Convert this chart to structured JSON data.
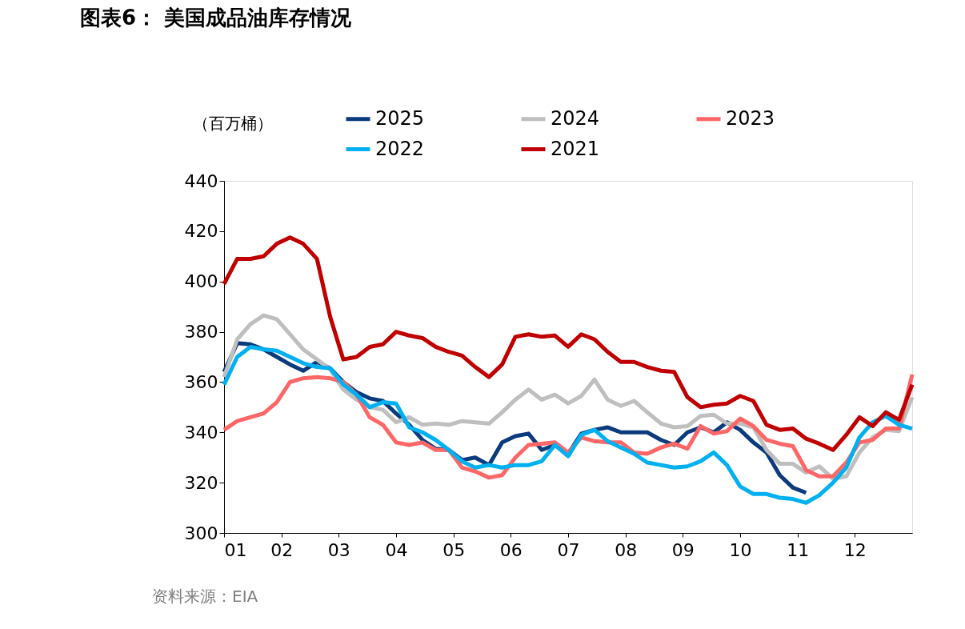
{
  "chart_data": {
    "type": "line",
    "title": "图表6：  美国成品油库存情况",
    "ylabel": "（百万桶）",
    "annotations": [
      "资料来源：EIA"
    ],
    "x": [
      1,
      1.23,
      1.46,
      1.69,
      1.92,
      2.15,
      2.38,
      2.62,
      2.85,
      3.08,
      3.31,
      3.54,
      3.77,
      4.0,
      4.23,
      4.46,
      4.69,
      4.92,
      5.15,
      5.38,
      5.62,
      5.85,
      6.08,
      6.31,
      6.54,
      6.77,
      7.0,
      7.23,
      7.46,
      7.69,
      7.92,
      8.15,
      8.38,
      8.62,
      8.85,
      9.08,
      9.31,
      9.54,
      9.77,
      10.0,
      10.23,
      10.46,
      10.69,
      10.92,
      11.15,
      11.38,
      11.62,
      11.85,
      12.08,
      12.31,
      12.54,
      12.77,
      13.0
    ],
    "xlim": [
      1,
      13
    ],
    "xticks": [
      {
        "value": 1,
        "label": "01"
      },
      {
        "value": 2,
        "label": "02"
      },
      {
        "value": 3,
        "label": "03"
      },
      {
        "value": 4,
        "label": "04"
      },
      {
        "value": 5,
        "label": "05"
      },
      {
        "value": 6,
        "label": "06"
      },
      {
        "value": 7,
        "label": "07"
      },
      {
        "value": 8,
        "label": "08"
      },
      {
        "value": 9,
        "label": "09"
      },
      {
        "value": 10,
        "label": "10"
      },
      {
        "value": 11,
        "label": "11"
      },
      {
        "value": 12,
        "label": "12"
      }
    ],
    "ylim": [
      300,
      440
    ],
    "yticks": [
      300,
      320,
      340,
      360,
      380,
      400,
      420,
      440
    ],
    "grid": false,
    "legend": "top",
    "marker": "none",
    "line_style": "solid",
    "series": [
      {
        "name": "2025",
        "color": "#0b3b7c",
        "values": [
          364,
          375.5,
          375,
          373,
          370,
          367,
          364.5,
          368,
          365.5,
          360,
          356,
          353.5,
          352.5,
          347.5,
          343,
          337,
          333.5,
          333,
          329,
          330,
          327,
          336,
          338.5,
          339.5,
          333,
          335,
          331.5,
          339.5,
          341,
          342,
          340,
          340,
          340,
          337,
          335,
          340,
          342,
          340,
          344,
          341,
          336,
          332,
          323,
          318,
          316,
          null,
          null,
          null,
          null,
          null,
          null,
          null,
          null
        ]
      },
      {
        "name": "2024",
        "color": "#bfbfbf",
        "values": [
          362,
          377,
          383,
          386.5,
          385,
          379,
          373,
          369,
          365,
          357,
          353,
          350,
          349,
          344,
          346,
          343,
          343.5,
          343,
          344.5,
          344,
          343.5,
          348,
          353,
          357,
          353,
          355,
          351.5,
          354.5,
          361,
          353,
          350.5,
          352.5,
          348,
          343.5,
          342,
          342.5,
          346.5,
          347,
          343.5,
          343.5,
          342,
          333,
          327.5,
          327.5,
          324,
          326.5,
          321.5,
          322.5,
          332,
          338,
          341,
          340.5,
          354
        ]
      },
      {
        "name": "2023",
        "color": "#ff6666",
        "values": [
          341,
          344.5,
          346,
          347.5,
          352,
          360,
          361.5,
          362,
          361.5,
          360,
          355,
          346,
          343,
          336,
          335,
          336,
          333,
          333,
          326,
          324.5,
          322,
          323,
          330,
          335,
          335.5,
          336,
          332,
          338,
          336.5,
          336,
          336,
          332,
          331.5,
          334,
          335.5,
          333.5,
          342.5,
          339.5,
          340.5,
          345.5,
          342.5,
          337,
          335.5,
          334.5,
          325,
          322.5,
          322.5,
          328,
          336,
          337,
          341.5,
          341.5,
          363
        ]
      },
      {
        "name": "2022",
        "color": "#00b0f0",
        "values": [
          359,
          370,
          374,
          373,
          372.5,
          370,
          367.5,
          366,
          365.5,
          359,
          355,
          350,
          352,
          351.5,
          342,
          340,
          337,
          333,
          328.5,
          326,
          327,
          326,
          327,
          327,
          328.5,
          335,
          330.5,
          339,
          341,
          336.5,
          334,
          331.5,
          328,
          327,
          326,
          326.5,
          328.5,
          332,
          327,
          318.5,
          315.5,
          315.5,
          314,
          313.5,
          312,
          315,
          320,
          326,
          338,
          344,
          346.5,
          343,
          341.5
        ]
      },
      {
        "name": "2021",
        "color": "#c00000",
        "values": [
          399,
          409,
          409,
          410,
          415,
          417.5,
          415,
          409,
          386,
          369,
          370,
          374,
          375,
          380,
          378.5,
          377.5,
          374,
          372,
          370.5,
          366,
          362,
          367,
          378,
          379,
          378,
          378.5,
          374,
          379,
          377,
          372,
          368,
          368,
          366,
          364.5,
          364,
          354,
          350,
          351,
          351.5,
          354.5,
          352.5,
          343,
          341,
          341.5,
          337.5,
          335.5,
          333,
          339,
          346,
          342.5,
          348,
          345,
          359
        ]
      }
    ]
  }
}
